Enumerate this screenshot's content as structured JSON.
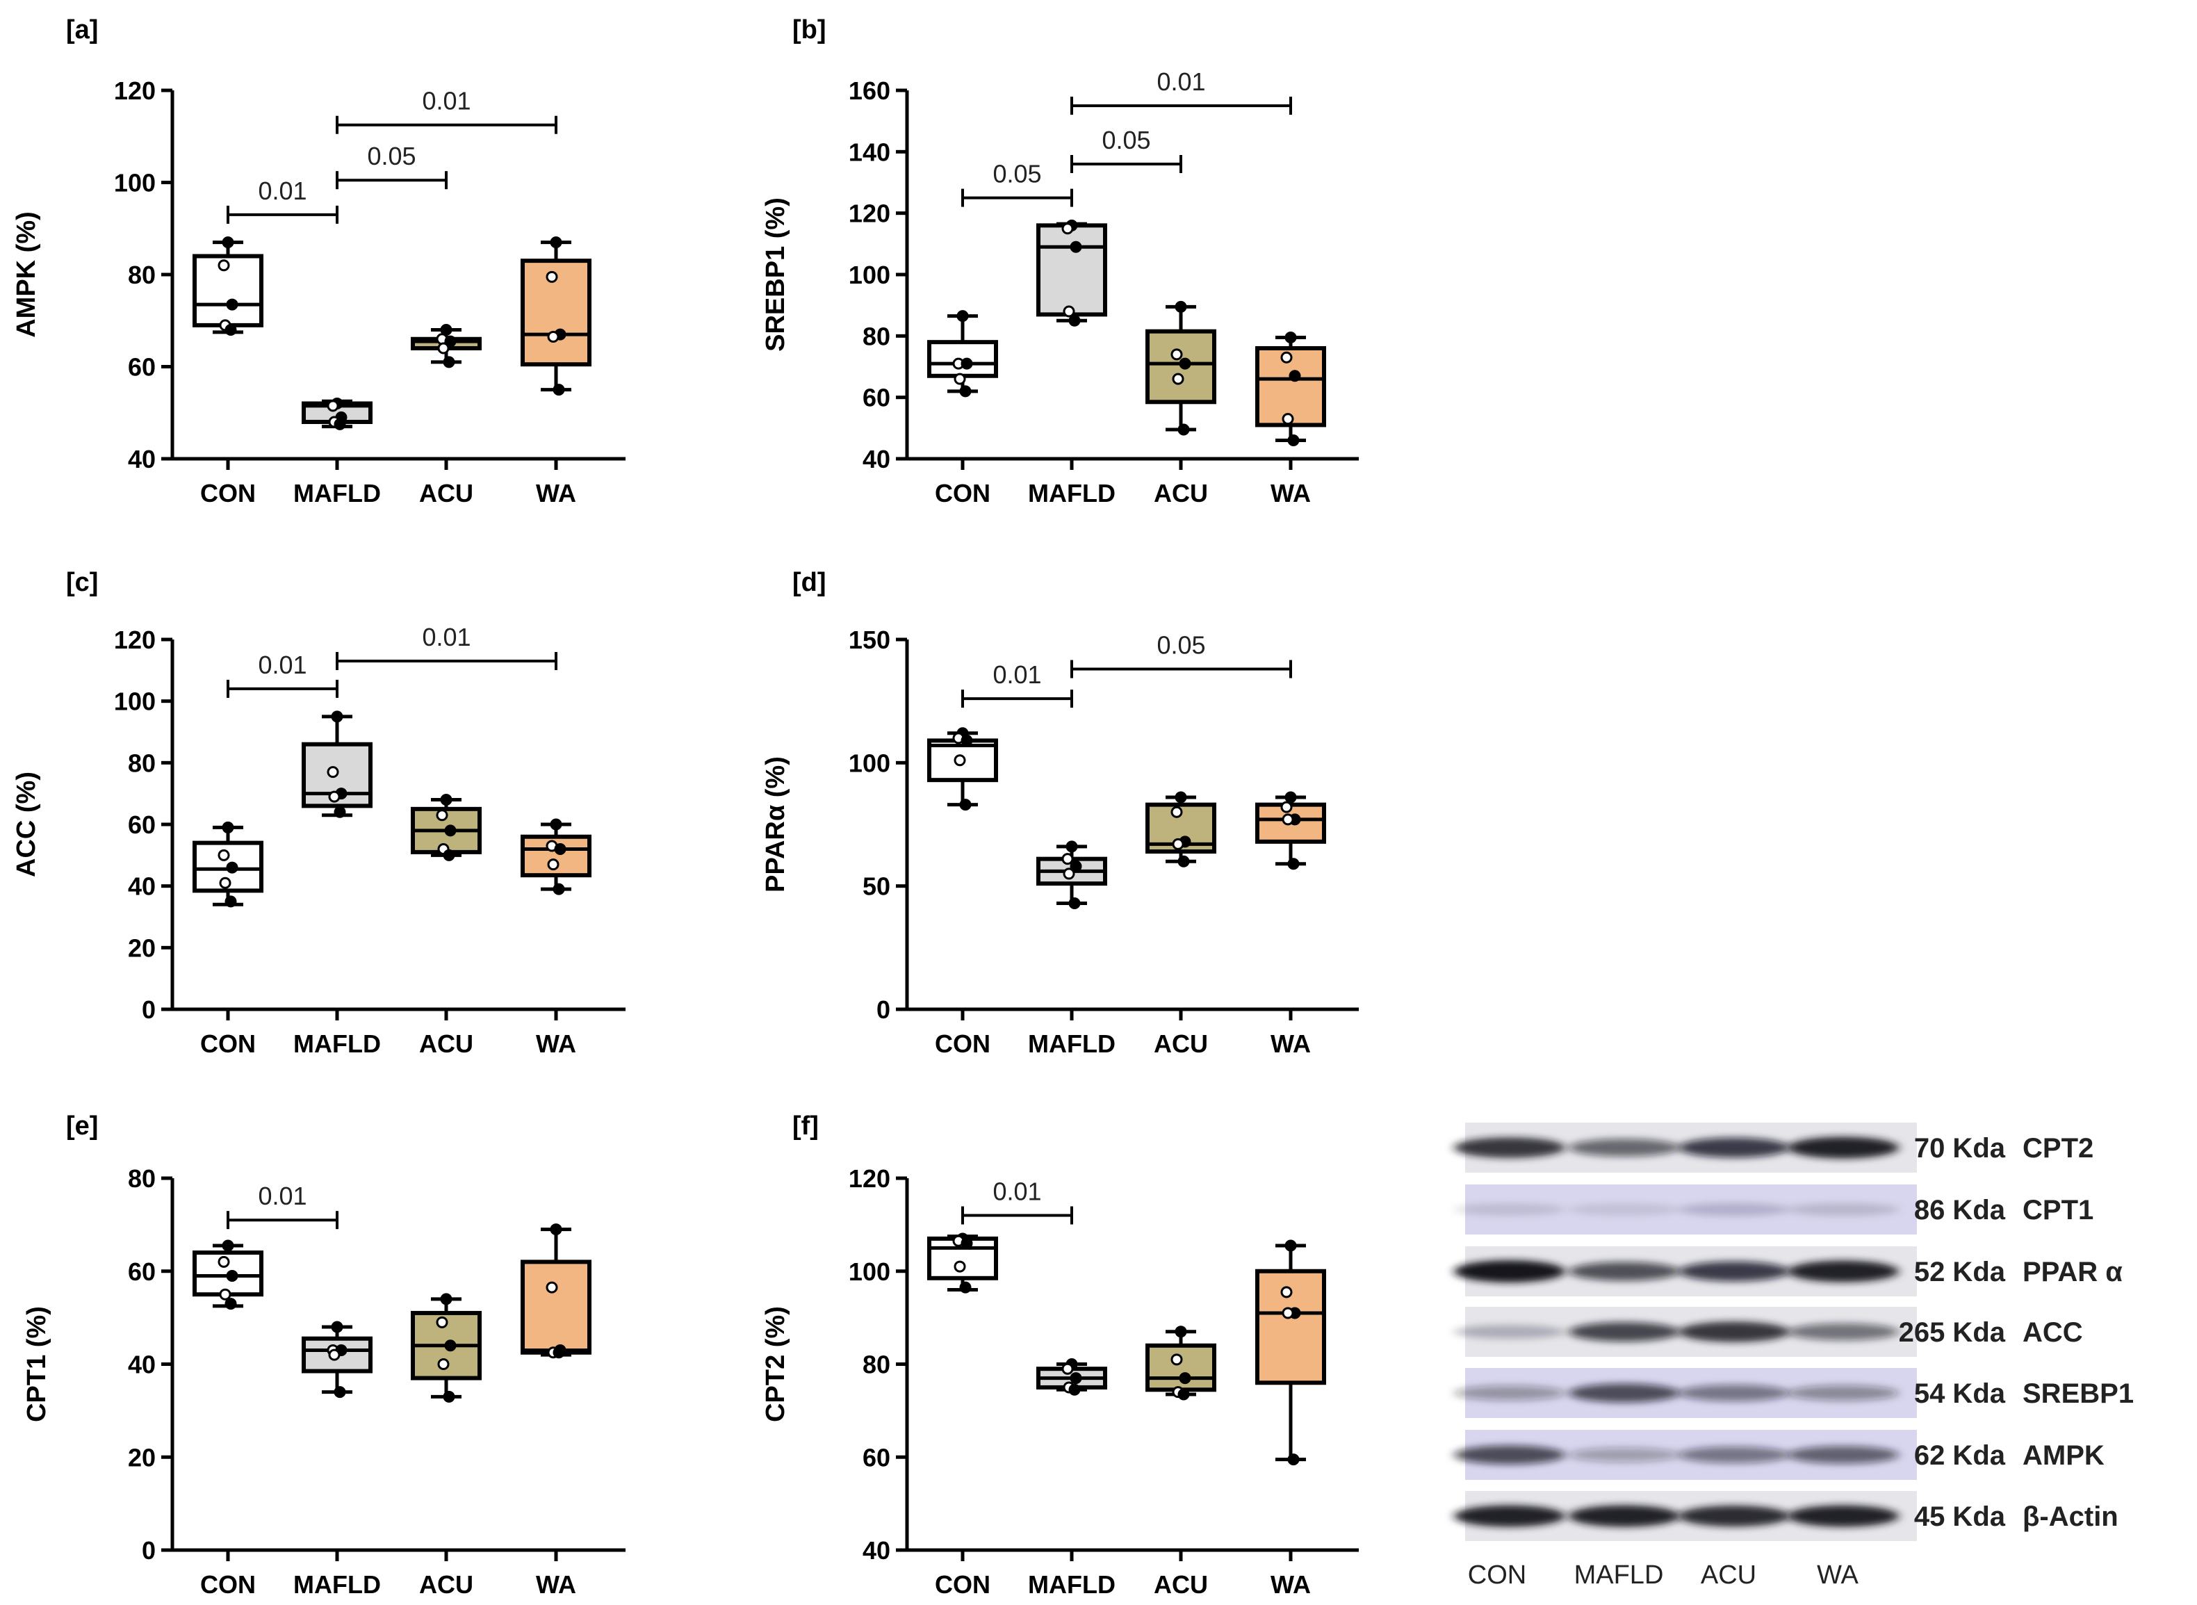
{
  "colors": {
    "CON": "#ffffff",
    "MAFLD": "#d9d9d9",
    "ACU": "#beb37c",
    "WA": "#f2b682",
    "axis": "#000000",
    "blot_bg": "#e6e6ea",
    "blot_bg_blue": "#d8d6ee"
  },
  "chart_data": [
    {
      "panel": "[a]",
      "type": "box",
      "ylabel": "AMPK (%)",
      "ylim": [
        40,
        120
      ],
      "yticks": [
        40,
        60,
        80,
        100,
        120
      ],
      "categories": [
        "CON",
        "MAFLD",
        "ACU",
        "WA"
      ],
      "boxes": [
        {
          "group": "CON",
          "min": 67.5,
          "q1": 69,
          "median": 73.5,
          "q3": 84,
          "max": 87,
          "points": [
            87,
            82,
            73.5,
            69,
            68
          ]
        },
        {
          "group": "MAFLD",
          "min": 47,
          "q1": 48,
          "median": 51.5,
          "q3": 52,
          "max": 52.5,
          "points": [
            52,
            51.5,
            49,
            48,
            47.5
          ]
        },
        {
          "group": "ACU",
          "min": 61,
          "q1": 64,
          "median": 65.5,
          "q3": 66,
          "max": 68,
          "points": [
            68,
            66,
            65.5,
            64,
            61
          ]
        },
        {
          "group": "WA",
          "min": 55,
          "q1": 60.5,
          "median": 67,
          "q3": 83,
          "max": 87,
          "points": [
            87,
            79.5,
            67,
            66.5,
            55
          ]
        }
      ],
      "brackets": [
        {
          "from": "CON",
          "to": "MAFLD",
          "label": "0.01",
          "y": 93
        },
        {
          "from": "MAFLD",
          "to": "ACU",
          "label": "0.05",
          "y": 100.5
        },
        {
          "from": "MAFLD",
          "to": "WA",
          "label": "0.01",
          "y": 112.5
        }
      ]
    },
    {
      "panel": "[b]",
      "type": "box",
      "ylabel": "SREBP1 (%)",
      "ylim": [
        40,
        160
      ],
      "yticks": [
        40,
        60,
        80,
        100,
        120,
        140,
        160
      ],
      "categories": [
        "CON",
        "MAFLD",
        "ACU",
        "WA"
      ],
      "boxes": [
        {
          "group": "CON",
          "min": 62,
          "q1": 67,
          "median": 71,
          "q3": 78,
          "max": 86.5,
          "points": [
            86.5,
            71,
            71,
            66,
            62
          ]
        },
        {
          "group": "MAFLD",
          "min": 85,
          "q1": 87,
          "median": 109,
          "q3": 116,
          "max": 116.5,
          "points": [
            116,
            115,
            109,
            88,
            85
          ]
        },
        {
          "group": "ACU",
          "min": 49.5,
          "q1": 58.5,
          "median": 71,
          "q3": 81.5,
          "max": 89.5,
          "points": [
            89.5,
            74,
            71,
            66,
            49.5
          ]
        },
        {
          "group": "WA",
          "min": 46,
          "q1": 51,
          "median": 66,
          "q3": 76,
          "max": 79.5,
          "points": [
            79.5,
            73,
            67,
            53,
            46
          ]
        }
      ],
      "brackets": [
        {
          "from": "CON",
          "to": "MAFLD",
          "label": "0.05",
          "y": 125
        },
        {
          "from": "MAFLD",
          "to": "ACU",
          "label": "0.05",
          "y": 136
        },
        {
          "from": "MAFLD",
          "to": "WA",
          "label": "0.01",
          "y": 155
        }
      ]
    },
    {
      "panel": "[c]",
      "type": "box",
      "ylabel": "ACC (%)",
      "ylim": [
        0,
        120
      ],
      "yticks": [
        0,
        20,
        40,
        60,
        80,
        100,
        120
      ],
      "categories": [
        "CON",
        "MAFLD",
        "ACU",
        "WA"
      ],
      "boxes": [
        {
          "group": "CON",
          "min": 34,
          "q1": 38.5,
          "median": 45.5,
          "q3": 54,
          "max": 59,
          "points": [
            59,
            50,
            46,
            41,
            35
          ]
        },
        {
          "group": "MAFLD",
          "min": 63,
          "q1": 66,
          "median": 70,
          "q3": 86,
          "max": 95,
          "points": [
            95,
            77,
            70,
            69,
            64
          ]
        },
        {
          "group": "ACU",
          "min": 50,
          "q1": 51,
          "median": 58,
          "q3": 65,
          "max": 68,
          "points": [
            68,
            63,
            58,
            52,
            50
          ]
        },
        {
          "group": "WA",
          "min": 39,
          "q1": 43.5,
          "median": 52,
          "q3": 56,
          "max": 60,
          "points": [
            60,
            53,
            52,
            47,
            39
          ]
        }
      ],
      "brackets": [
        {
          "from": "CON",
          "to": "MAFLD",
          "label": "0.01",
          "y": 104
        },
        {
          "from": "MAFLD",
          "to": "WA",
          "label": "0.01",
          "y": 113
        }
      ]
    },
    {
      "panel": "[d]",
      "type": "box",
      "ylabel": "PPARα (%)",
      "ylim": [
        0,
        150
      ],
      "yticks": [
        0,
        50,
        100,
        150
      ],
      "categories": [
        "CON",
        "MAFLD",
        "ACU",
        "WA"
      ],
      "boxes": [
        {
          "group": "CON",
          "min": 83,
          "q1": 93,
          "median": 107,
          "q3": 109,
          "max": 112,
          "points": [
            112,
            110,
            109,
            101,
            83
          ]
        },
        {
          "group": "MAFLD",
          "min": 43,
          "q1": 51,
          "median": 56,
          "q3": 61,
          "max": 66,
          "points": [
            66,
            61,
            58,
            55,
            43
          ]
        },
        {
          "group": "ACU",
          "min": 60,
          "q1": 64,
          "median": 67,
          "q3": 83,
          "max": 86,
          "points": [
            86,
            80,
            68,
            67,
            60
          ]
        },
        {
          "group": "WA",
          "min": 59,
          "q1": 68,
          "median": 77,
          "q3": 83,
          "max": 86,
          "points": [
            86,
            82,
            77,
            77,
            59
          ]
        }
      ],
      "brackets": [
        {
          "from": "CON",
          "to": "MAFLD",
          "label": "0.01",
          "y": 126
        },
        {
          "from": "MAFLD",
          "to": "WA",
          "label": "0.05",
          "y": 138
        }
      ]
    },
    {
      "panel": "[e]",
      "type": "box",
      "ylabel": "CPT1 (%)",
      "ylim": [
        0,
        80
      ],
      "yticks": [
        0,
        20,
        40,
        60,
        80
      ],
      "categories": [
        "CON",
        "MAFLD",
        "ACU",
        "WA"
      ],
      "boxes": [
        {
          "group": "CON",
          "min": 52.5,
          "q1": 55,
          "median": 59,
          "q3": 64,
          "max": 65.5,
          "points": [
            65.5,
            62,
            59,
            55,
            53
          ]
        },
        {
          "group": "MAFLD",
          "min": 34,
          "q1": 38.5,
          "median": 43,
          "q3": 45.5,
          "max": 48,
          "points": [
            48,
            43,
            43,
            42,
            34
          ]
        },
        {
          "group": "ACU",
          "min": 33,
          "q1": 37,
          "median": 44,
          "q3": 51,
          "max": 54,
          "points": [
            54,
            49,
            44,
            40,
            33
          ]
        },
        {
          "group": "WA",
          "min": 42,
          "q1": 42.5,
          "median": 43,
          "q3": 62,
          "max": 69,
          "points": [
            69,
            56.5,
            43,
            42.5,
            42.5
          ]
        }
      ],
      "brackets": [
        {
          "from": "CON",
          "to": "MAFLD",
          "label": "0.01",
          "y": 71
        }
      ]
    },
    {
      "panel": "[f]",
      "type": "box",
      "ylabel": "CPT2 (%)",
      "ylim": [
        40,
        120
      ],
      "yticks": [
        40,
        60,
        80,
        100,
        120
      ],
      "categories": [
        "CON",
        "MAFLD",
        "ACU",
        "WA"
      ],
      "boxes": [
        {
          "group": "CON",
          "min": 96,
          "q1": 98.5,
          "median": 105,
          "q3": 107,
          "max": 107.5,
          "points": [
            107,
            106.5,
            106,
            101,
            96.5
          ]
        },
        {
          "group": "MAFLD",
          "min": 74.5,
          "q1": 75,
          "median": 77,
          "q3": 79,
          "max": 80,
          "points": [
            80,
            79,
            77,
            75,
            74.5
          ]
        },
        {
          "group": "ACU",
          "min": 73.5,
          "q1": 74.5,
          "median": 77,
          "q3": 84,
          "max": 87,
          "points": [
            87,
            81,
            77,
            74,
            73.5
          ]
        },
        {
          "group": "WA",
          "min": 59.5,
          "q1": 76,
          "median": 91,
          "q3": 100,
          "max": 105.5,
          "points": [
            105.5,
            95.5,
            91,
            91,
            59.5
          ]
        }
      ],
      "brackets": [
        {
          "from": "CON",
          "to": "MAFLD",
          "label": "0.01",
          "y": 112
        }
      ]
    }
  ],
  "western_blot": {
    "lanes": [
      "CON",
      "MAFLD",
      "ACU",
      "WA"
    ],
    "rows": [
      {
        "kda": "70 Kda",
        "protein": "CPT2",
        "intensities": [
          0.85,
          0.6,
          0.8,
          0.95
        ],
        "tint": "gray"
      },
      {
        "kda": "86 Kda",
        "protein": "CPT1",
        "intensities": [
          0.12,
          0.1,
          0.18,
          0.15
        ],
        "tint": "blue"
      },
      {
        "kda": "52 Kda",
        "protein": "PPAR α",
        "intensities": [
          1.0,
          0.7,
          0.8,
          0.95
        ],
        "tint": "gray"
      },
      {
        "kda": "265 Kda",
        "protein": "ACC",
        "intensities": [
          0.25,
          0.75,
          0.85,
          0.55
        ],
        "tint": "gray"
      },
      {
        "kda": "54 Kda",
        "protein": "SREBP1",
        "intensities": [
          0.35,
          0.7,
          0.5,
          0.4
        ],
        "tint": "blue"
      },
      {
        "kda": "62 Kda",
        "protein": "AMPK",
        "intensities": [
          0.7,
          0.3,
          0.5,
          0.6
        ],
        "tint": "blue"
      },
      {
        "kda": "45 Kda",
        "protein": "β-Actin",
        "intensities": [
          0.95,
          0.95,
          0.9,
          0.95
        ],
        "tint": "gray"
      }
    ]
  }
}
